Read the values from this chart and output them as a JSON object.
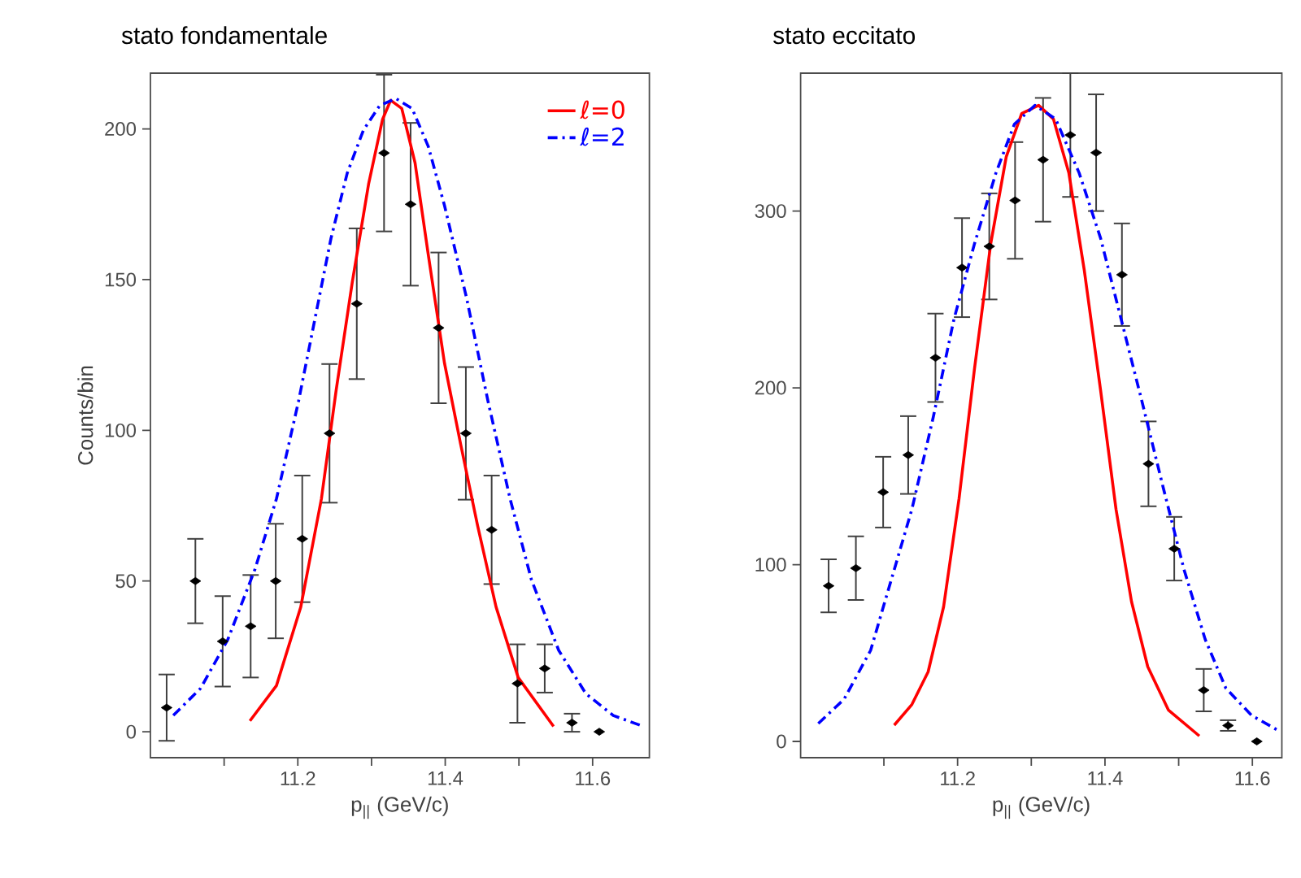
{
  "chart_data": [
    {
      "type": "scatter",
      "title": "stato fondamentale",
      "xlabel": "p$_{||}$ (GeV/c)",
      "ylabel": "Counts/bin",
      "xlim": [
        11.0,
        11.677
      ],
      "ylim": [
        -8.6,
        218.5
      ],
      "xticks": [
        {
          "value": 11.1,
          "label": null
        },
        11.2,
        {
          "value": 11.3,
          "label": null
        },
        11.4,
        {
          "value": 11.5,
          "label": null
        },
        11.6
      ],
      "yticks": [
        0,
        50,
        100,
        150,
        200
      ],
      "legend": "top right",
      "series": [
        {
          "type": "scatter",
          "marker": "diamond",
          "color": "#000000",
          "x": [
            11.022,
            11.061,
            11.098,
            11.136,
            11.17,
            11.206,
            11.243,
            11.28,
            11.317,
            11.353,
            11.391,
            11.428,
            11.463,
            11.498,
            11.535,
            11.572,
            11.609
          ],
          "values": [
            8,
            50,
            30,
            35,
            50,
            64,
            99,
            142,
            192,
            175,
            134,
            99,
            67,
            16,
            21,
            3,
            0
          ],
          "errors": [
            11,
            14,
            15,
            17,
            19,
            21,
            23,
            25,
            26,
            27,
            25,
            22,
            18,
            13,
            8,
            3,
            null
          ]
        },
        {
          "type": "line",
          "name": "ℓ=0",
          "color": "#ff0000",
          "line_style": "solid",
          "x": [
            11.135,
            11.171,
            11.204,
            11.232,
            11.252,
            11.274,
            11.296,
            11.315,
            11.326,
            11.341,
            11.359,
            11.377,
            11.399,
            11.421,
            11.444,
            11.469,
            11.499,
            11.547
          ],
          "values": [
            3.6,
            15.3,
            41.4,
            77.3,
            113.3,
            149.3,
            181.7,
            203.2,
            209.5,
            206.8,
            188.8,
            158.3,
            122.3,
            95.3,
            68.3,
            41.4,
            18,
            1.8
          ]
        },
        {
          "type": "line",
          "name": "ℓ=2",
          "color": "#0000ff",
          "line_style": "dashdot",
          "x": [
            11.031,
            11.068,
            11.105,
            11.142,
            11.171,
            11.201,
            11.223,
            11.245,
            11.267,
            11.289,
            11.311,
            11.333,
            11.355,
            11.377,
            11.399,
            11.429,
            11.458,
            11.488,
            11.517,
            11.554,
            11.591,
            11.628,
            11.664
          ],
          "values": [
            5.4,
            14.4,
            30.6,
            54,
            77.3,
            109.7,
            136.7,
            163.7,
            185.3,
            199.6,
            207.7,
            210.1,
            206.8,
            194.2,
            174.6,
            143.9,
            109.7,
            77.3,
            50.4,
            27,
            12.6,
            5.4,
            2.2
          ]
        }
      ]
    },
    {
      "type": "scatter",
      "title": "stato eccitato",
      "xlabel": "p$_{||}$ (GeV/c)",
      "xlim": [
        10.987,
        11.64
      ],
      "ylim": [
        -9.2,
        378
      ],
      "xticks": [
        {
          "value": 11.1,
          "label": null
        },
        11.2,
        {
          "value": 11.3,
          "label": null
        },
        11.4,
        {
          "value": 11.5,
          "label": null
        },
        11.6
      ],
      "yticks": [
        0,
        100,
        200,
        300
      ],
      "series": [
        {
          "type": "scatter",
          "marker": "diamond",
          "color": "#000000",
          "x": [
            11.025,
            11.062,
            11.099,
            11.133,
            11.17,
            11.206,
            11.243,
            11.278,
            11.316,
            11.353,
            11.388,
            11.423,
            11.459,
            11.494,
            11.534,
            11.567,
            11.606
          ],
          "values": [
            88,
            98,
            141,
            162,
            217,
            268,
            280,
            306,
            329,
            343,
            333,
            264,
            157,
            109,
            29,
            9,
            0
          ],
          "errors": [
            15,
            18,
            20,
            22,
            25,
            28,
            30,
            33,
            35,
            35,
            33,
            29,
            24,
            18,
            12,
            3,
            null
          ]
        },
        {
          "type": "line",
          "color": "#ff0000",
          "line_style": "solid",
          "x": [
            11.114,
            11.138,
            11.16,
            11.181,
            11.202,
            11.223,
            11.245,
            11.266,
            11.287,
            11.31,
            11.33,
            11.351,
            11.372,
            11.394,
            11.415,
            11.436,
            11.458,
            11.486,
            11.528
          ],
          "values": [
            9.2,
            20.9,
            39.3,
            76.1,
            137.4,
            211,
            281.6,
            330.7,
            355.2,
            359.8,
            352.1,
            321.5,
            266.3,
            198.8,
            131.3,
            79.1,
            42.3,
            17.8,
            3.1
          ]
        },
        {
          "type": "line",
          "color": "#0000ff",
          "line_style": "dashdot",
          "x": [
            11.011,
            11.046,
            11.082,
            11.11,
            11.138,
            11.167,
            11.195,
            11.223,
            11.252,
            11.277,
            11.305,
            11.333,
            11.365,
            11.394,
            11.422,
            11.45,
            11.479,
            11.507,
            11.536,
            11.564,
            11.599,
            11.638
          ],
          "values": [
            10.1,
            23.9,
            51.5,
            91.4,
            131.3,
            183.4,
            238.7,
            281.6,
            321.5,
            349.1,
            359.8,
            352.1,
            321.5,
            284.7,
            238.7,
            192.6,
            143.6,
            97.6,
            57.7,
            30.1,
            14.7,
            5.5
          ]
        }
      ]
    }
  ]
}
